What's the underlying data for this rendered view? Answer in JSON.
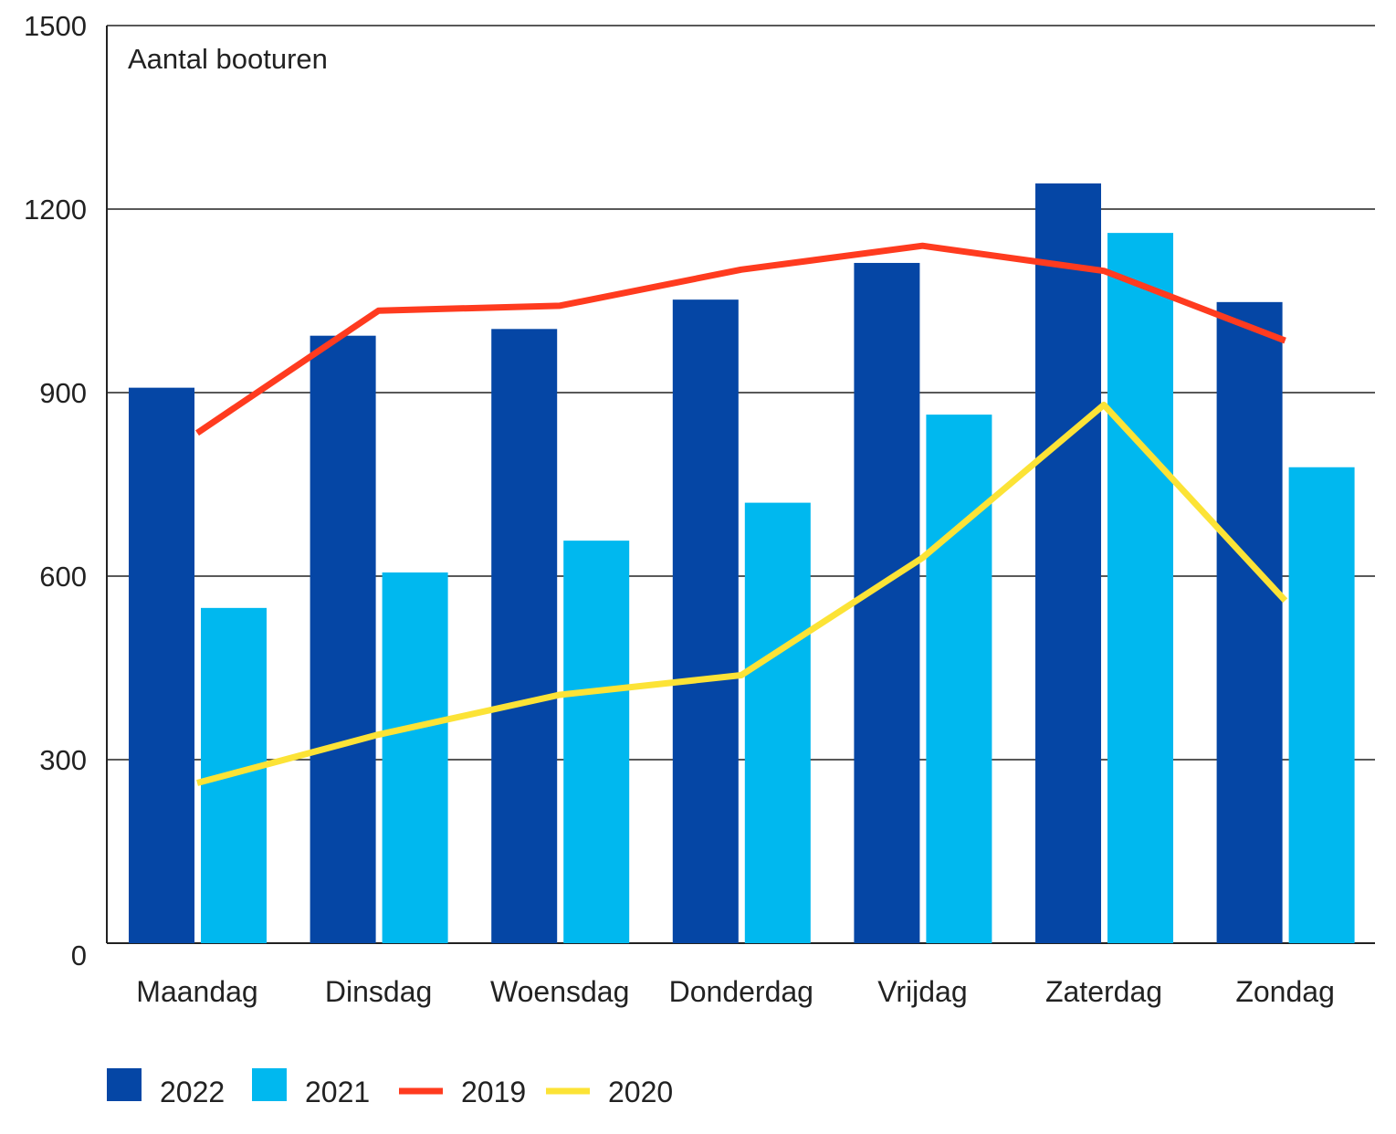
{
  "chart_data": {
    "type": "bar",
    "title": "Aantal booturen",
    "xlabel": "",
    "ylabel": "",
    "ylim": [
      0,
      1500
    ],
    "yticks": [
      "0",
      "300",
      "600",
      "900",
      "1200",
      "1500"
    ],
    "grid": true,
    "legend_position": "bottom-left",
    "categories": [
      "Maandag",
      "Dinsdag",
      "Woensdag",
      "Donderdag",
      "Vrijdag",
      "Zaterdag",
      "Zondag"
    ],
    "series": [
      {
        "name": "2022",
        "kind": "bar",
        "color": "#0546a5",
        "values": [
          908,
          993,
          1004,
          1052,
          1112,
          1242,
          1048
        ]
      },
      {
        "name": "2021",
        "kind": "bar",
        "color": "#00b8ef",
        "values": [
          548,
          606,
          658,
          720,
          864,
          1161,
          778
        ]
      },
      {
        "name": "2019",
        "kind": "line",
        "color": "#ff3b1f",
        "values": [
          834,
          1034,
          1042,
          1101,
          1140,
          1099,
          985
        ]
      },
      {
        "name": "2020",
        "kind": "line",
        "color": "#fce336",
        "values": [
          262,
          341,
          406,
          438,
          630,
          880,
          560
        ]
      }
    ]
  }
}
